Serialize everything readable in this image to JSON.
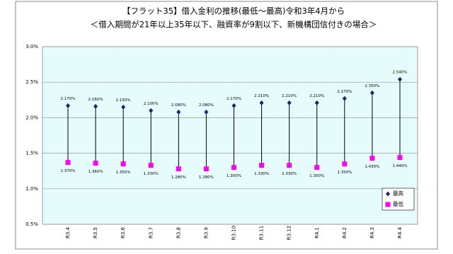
{
  "chart_data": {
    "type": "hilo",
    "title": "【フラット35】借入金利の推移(最低～最高)令和3年4月から",
    "subtitle": "＜借入期間が21年以上35年以下、融資率が9割以下、新機構団信付きの場合＞",
    "categories": [
      "R3.4",
      "R3.5",
      "R3.6",
      "R3.7",
      "R3.8",
      "R3.9",
      "R3.10",
      "R3.11",
      "R3.12",
      "R4.1",
      "R4.2",
      "R4.3",
      "R4.4"
    ],
    "series": [
      {
        "name": "最高",
        "color": "#1a237e",
        "marker": "diamond",
        "values": [
          2.17,
          2.16,
          2.15,
          2.1,
          2.08,
          2.08,
          2.17,
          2.21,
          2.21,
          2.21,
          2.27,
          2.35,
          2.54
        ],
        "value_labels": [
          "2.170%",
          "2.160%",
          "2.150%",
          "2.100%",
          "2.080%",
          "2.080%",
          "2.170%",
          "2.210%",
          "2.210%",
          "2.210%",
          "2.270%",
          "2.350%",
          "2.540%"
        ]
      },
      {
        "name": "最低",
        "color": "#ff00ff",
        "marker": "square",
        "values": [
          1.37,
          1.36,
          1.35,
          1.33,
          1.28,
          1.28,
          1.3,
          1.33,
          1.33,
          1.3,
          1.35,
          1.43,
          1.44
        ],
        "value_labels": [
          "1.370%",
          "1.360%",
          "1.350%",
          "1.330%",
          "1.280%",
          "1.280%",
          "1.300%",
          "1.330%",
          "1.330%",
          "1.300%",
          "1.350%",
          "1.430%",
          "1.440%"
        ]
      }
    ],
    "ylim": [
      0.5,
      3.0
    ],
    "yticks": [
      {
        "value": 0.5,
        "label": "0.5%"
      },
      {
        "value": 1.0,
        "label": "1.0%"
      },
      {
        "value": 1.5,
        "label": "1.5%"
      },
      {
        "value": 2.0,
        "label": "2.0%"
      },
      {
        "value": 2.5,
        "label": "2.5%"
      },
      {
        "value": 3.0,
        "label": "3.0%"
      }
    ],
    "grid": true,
    "legend": "lower right"
  }
}
